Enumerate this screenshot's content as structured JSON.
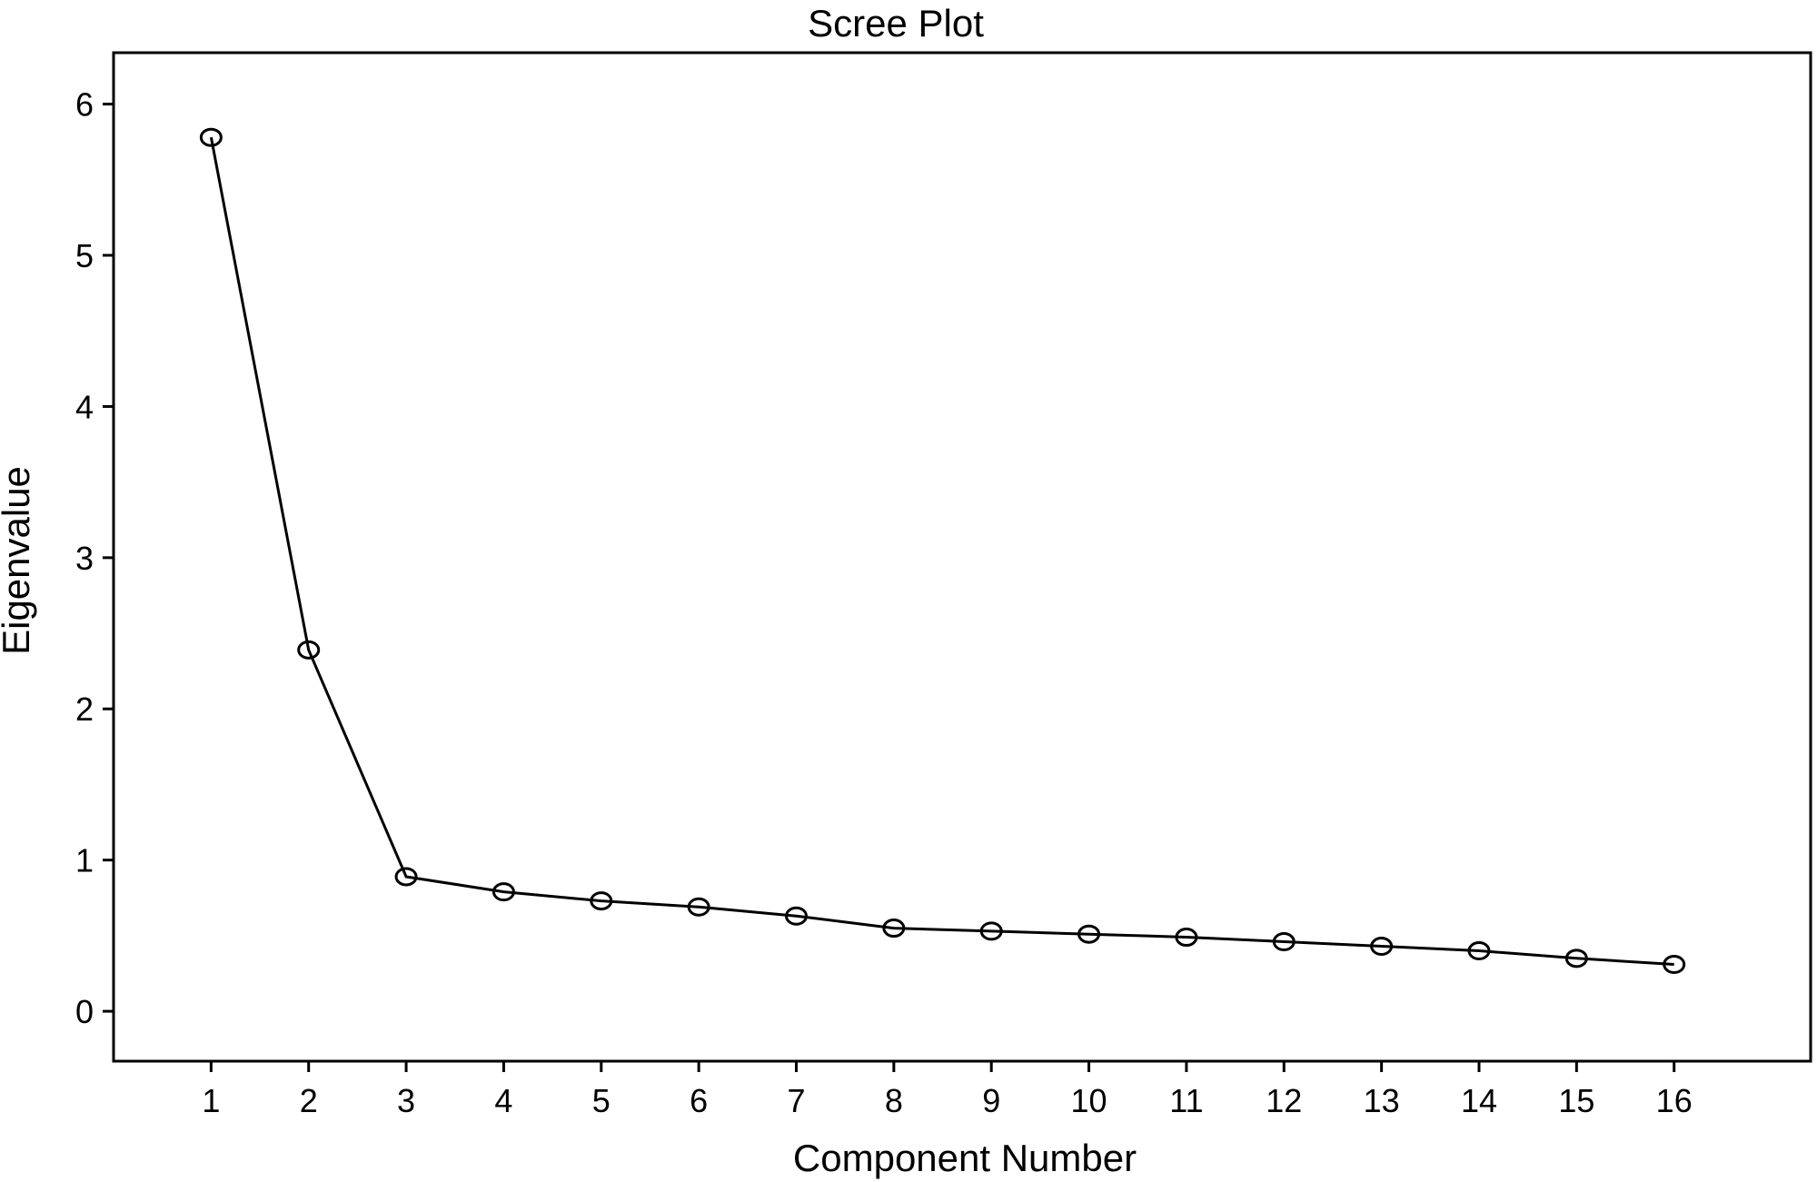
{
  "chart_data": {
    "type": "line",
    "title": "Scree Plot",
    "xlabel": "Component Number",
    "ylabel": "Eigenvalue",
    "x": [
      1,
      2,
      3,
      4,
      5,
      6,
      7,
      8,
      9,
      10,
      11,
      12,
      13,
      14,
      15,
      16
    ],
    "values": [
      5.78,
      2.39,
      0.89,
      0.79,
      0.73,
      0.69,
      0.63,
      0.55,
      0.53,
      0.51,
      0.49,
      0.46,
      0.43,
      0.4,
      0.35,
      0.31
    ],
    "xticks": [
      "1",
      "2",
      "3",
      "4",
      "5",
      "6",
      "7",
      "8",
      "9",
      "10",
      "11",
      "12",
      "13",
      "14",
      "15",
      "16"
    ],
    "yticks": [
      "0",
      "1",
      "2",
      "3",
      "4",
      "5",
      "6"
    ],
    "xlim": [
      0,
      17.4
    ],
    "ylim": [
      -0.33,
      6.34
    ],
    "grid": false,
    "marker": "open-circle",
    "line_color": "#000000"
  }
}
